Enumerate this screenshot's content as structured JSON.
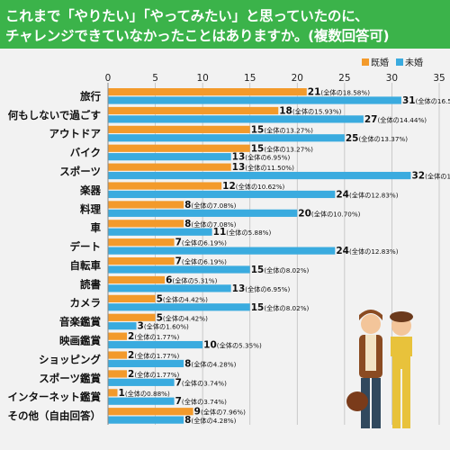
{
  "title_lines": [
    "これまで「やりたい」「やってみたい」と思っていたのに、",
    "チャレンジできていなかったことはありますか。(複数回答可)"
  ],
  "colors": {
    "title_band": "#3bb34a",
    "married": "#f39a2b",
    "unmarried": "#3aabdf",
    "grid": "#bfbfbf",
    "background": "#f2f2f2"
  },
  "chart_data": {
    "type": "bar",
    "orientation": "horizontal",
    "xlim": [
      0,
      35
    ],
    "xticks": [
      "0",
      "5",
      "10",
      "15",
      "20",
      "25",
      "30",
      "35"
    ],
    "legend_position": "top-right",
    "categories": [
      "旅行",
      "何もしないで過ごす",
      "アウトドア",
      "バイク",
      "スポーツ",
      "楽器",
      "料理",
      "車",
      "デート",
      "自転車",
      "読書",
      "カメラ",
      "音楽鑑賞",
      "映画鑑賞",
      "ショッピング",
      "スポーツ鑑賞",
      "インターネット鑑賞",
      "その他（自由回答）"
    ],
    "series": [
      {
        "name": "既婚",
        "values": [
          21,
          18,
          15,
          15,
          13,
          12,
          8,
          8,
          7,
          7,
          6,
          5,
          5,
          2,
          2,
          2,
          1,
          9
        ],
        "labels": [
          "21",
          "18",
          "15",
          "15",
          "13",
          "12",
          "8",
          "8",
          "7",
          "7",
          "6",
          "5",
          "5",
          "2",
          "2",
          "2",
          "1",
          "9"
        ],
        "notes": [
          "(全体の18.58%)",
          "(全体の15.93%)",
          "(全体の13.27%)",
          "(全体の13.27%)",
          "(全体の11.50%)",
          "(全体の10.62%)",
          "(全体の7.08%)",
          "(全体の7.08%)",
          "(全体の6.19%)",
          "(全体の6.19%)",
          "(全体の5.31%)",
          "(全体の4.42%)",
          "(全体の4.42%)",
          "(全体の1.77%)",
          "(全体の1.77%)",
          "(全体の1.77%)",
          "(全体の0.88%)",
          "(全体の7.96%)"
        ]
      },
      {
        "name": "未婚",
        "values": [
          31,
          27,
          25,
          13,
          32,
          24,
          20,
          11,
          24,
          15,
          13,
          15,
          3,
          10,
          8,
          7,
          7,
          8
        ],
        "labels": [
          "31",
          "27",
          "25",
          "13",
          "32",
          "24",
          "20",
          "11",
          "24",
          "15",
          "13",
          "15",
          "3",
          "10",
          "8",
          "7",
          "7",
          "8"
        ],
        "notes": [
          "(全体の16.58%)",
          "(全体の14.44%)",
          "(全体の13.37%)",
          "(全体の6.95%)",
          "(全体の17.11%)",
          "(全体の12.83%)",
          "(全体の10.70%)",
          "(全体の5.88%)",
          "(全体の12.83%)",
          "(全体の8.02%)",
          "(全体の6.95%)",
          "(全体の8.02%)",
          "(全体の1.60%)",
          "(全体の5.35%)",
          "(全体の4.28%)",
          "(全体の3.74%)",
          "(全体の3.74%)",
          "(全体の4.28%)"
        ]
      }
    ]
  }
}
